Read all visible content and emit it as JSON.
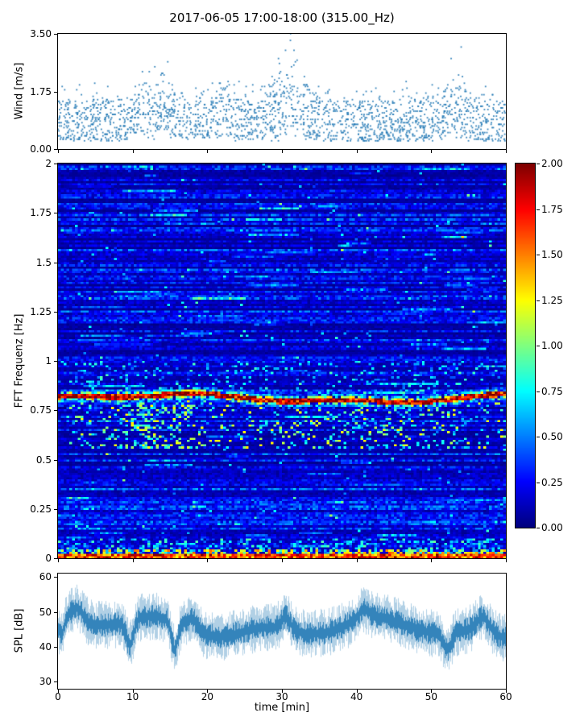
{
  "figure": {
    "title": "2017-06-05 17:00-18:00 (315.00_Hz)",
    "background": "#ffffff",
    "accent_color": "#1f77b4"
  },
  "chart_data": [
    {
      "id": "wind",
      "type": "scatter",
      "ylabel": "Wind [m/s]",
      "ylim": [
        0,
        3.5
      ],
      "yticks": [
        "0.00",
        "1.75",
        "3.50"
      ],
      "xlim": [
        0,
        60
      ],
      "marker_color": "#1f77b4",
      "point_count": 2100,
      "dense_band": [
        0.25,
        1.75
      ],
      "quantize_step": 0.05,
      "gust_peaks": [
        {
          "t": 13,
          "max": 3.1
        },
        {
          "t": 22,
          "max": 2.4
        },
        {
          "t": 31,
          "max": 3.5
        },
        {
          "t": 53,
          "max": 2.7
        }
      ]
    },
    {
      "id": "spectrogram",
      "type": "heatmap",
      "ylabel": "FFT Frequenz [Hz]",
      "ylim": [
        0,
        2
      ],
      "yticks": [
        "0",
        "0.25",
        "0.5",
        "0.75",
        "1",
        "1.25",
        "1.5",
        "1.75",
        "2"
      ],
      "xlim": [
        0,
        60
      ],
      "colormap": "jet",
      "colorbar": {
        "min": 0,
        "max": 2,
        "ticks": [
          "0.00",
          "0.25",
          "0.50",
          "0.75",
          "1.00",
          "1.25",
          "1.50",
          "1.75",
          "2.00"
        ]
      },
      "background_level": [
        0.05,
        0.45
      ],
      "features": [
        {
          "name": "tonal-band",
          "freq": 0.81,
          "width": 0.025,
          "value": 2.0,
          "wobble": 0.03
        },
        {
          "name": "sub-band-activity",
          "freq_range": [
            0.55,
            0.78
          ],
          "value_range": [
            0.5,
            1.3
          ]
        },
        {
          "name": "low-frequency-band",
          "freq_range": [
            0,
            0.05
          ],
          "value_range": [
            1.0,
            2.0
          ]
        }
      ]
    },
    {
      "id": "spl",
      "type": "line",
      "ylabel": "SPL [dB]",
      "ylim": [
        28,
        61
      ],
      "yticks": [
        "30",
        "40",
        "50",
        "60"
      ],
      "xlabel": "time [min]",
      "xlim": [
        0,
        60
      ],
      "xticks": [
        "0",
        "10",
        "20",
        "30",
        "40",
        "50",
        "60"
      ],
      "line_color": "#1f77b4",
      "mean_level": 45,
      "range": [
        32,
        58
      ]
    }
  ]
}
